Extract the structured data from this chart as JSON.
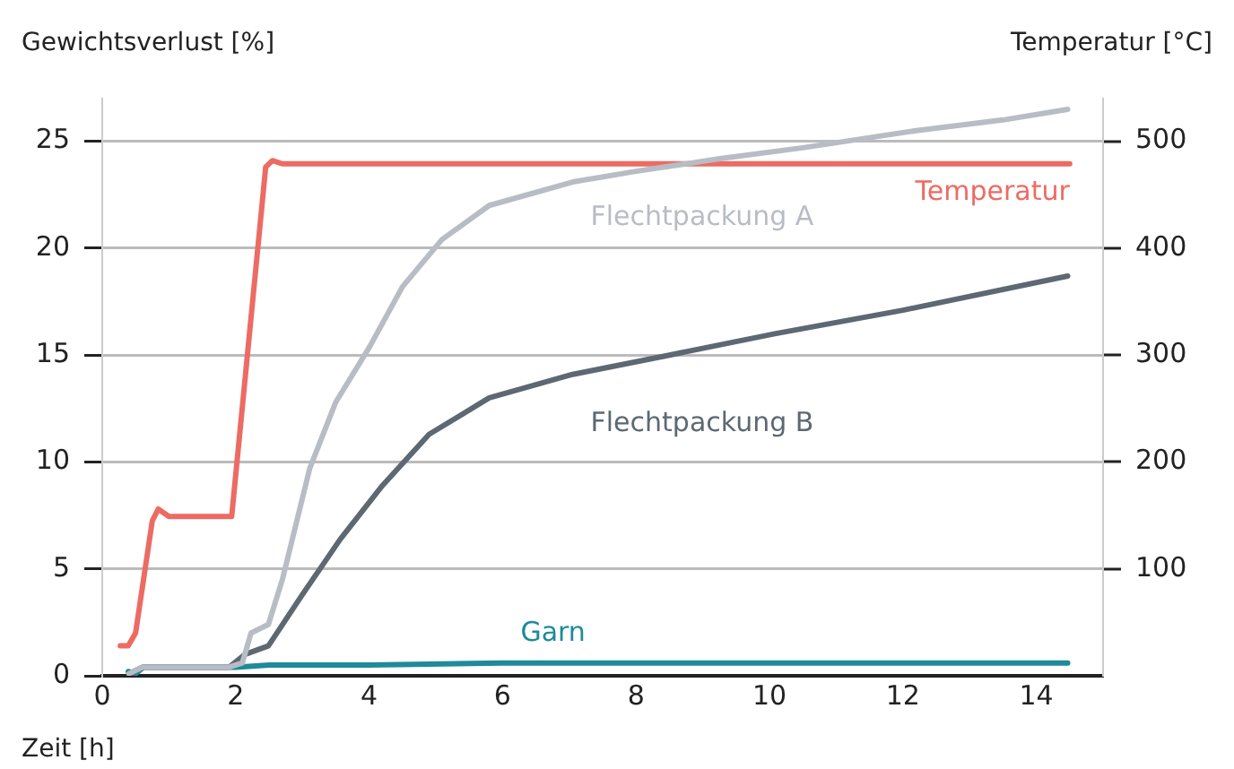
{
  "chart_data": {
    "type": "line",
    "xlabel": "Zeit [h]",
    "ylabel": "Gewichtsverlust [%]",
    "y2label": "Temperatur [°C]",
    "xlim": [
      0,
      15
    ],
    "xticks": [
      0,
      2,
      4,
      6,
      8,
      10,
      12,
      14
    ],
    "ylim": [
      0,
      27
    ],
    "yticks": [
      0,
      5,
      10,
      15,
      20,
      25
    ],
    "y2lim": [
      0,
      540
    ],
    "y2ticks": [
      100,
      200,
      300,
      400,
      500
    ],
    "grid": "y",
    "legend": false,
    "marker": "none",
    "line_style": "solid",
    "series": [
      {
        "name": "Flechtpackung A",
        "color": "#b8bcc4",
        "x": [
          0.4,
          0.6,
          1.9,
          2.1,
          2.23,
          2.49,
          2.7,
          3.11,
          3.5,
          4.01,
          4.5,
          5.09,
          5.8,
          7.05,
          8,
          9.28,
          10.5,
          12.2,
          13.5,
          14.47
        ],
        "values": [
          0.1,
          0.4,
          0.4,
          0.6,
          2.0,
          2.4,
          4.5,
          9.7,
          12.8,
          15.4,
          18.2,
          20.4,
          22.0,
          23.1,
          23.6,
          24.2,
          24.7,
          25.5,
          26.0,
          26.5
        ]
      },
      {
        "name": "Flechtpackung B",
        "color": "#5d6872",
        "x": [
          0.4,
          0.6,
          1.9,
          2.14,
          2.49,
          3.0,
          3.57,
          4.2,
          4.9,
          5.8,
          7.05,
          8.5,
          10.08,
          12,
          14.47
        ],
        "values": [
          0.1,
          0.4,
          0.4,
          1.0,
          1.4,
          3.8,
          6.4,
          8.9,
          11.3,
          13.0,
          14.1,
          15.0,
          16.0,
          17.1,
          18.7
        ]
      },
      {
        "name": "Garn",
        "color": "#1f8a9a",
        "x": [
          0.39,
          0.5,
          0.62,
          2.0,
          2.5,
          4,
          6,
          8,
          10,
          12,
          14.47
        ],
        "values": [
          0.2,
          0.1,
          0.4,
          0.4,
          0.5,
          0.5,
          0.6,
          0.6,
          0.6,
          0.6,
          0.6
        ]
      },
      {
        "name": "Temperatur",
        "color": "#ec6b63",
        "axis": "y2",
        "x": [
          0.27,
          0.39,
          0.5,
          0.75,
          0.84,
          1.0,
          1.94,
          2.45,
          2.55,
          2.7,
          14.5
        ],
        "values": [
          28,
          28,
          40,
          145,
          156,
          149,
          149,
          476,
          482,
          479,
          479
        ]
      }
    ]
  }
}
